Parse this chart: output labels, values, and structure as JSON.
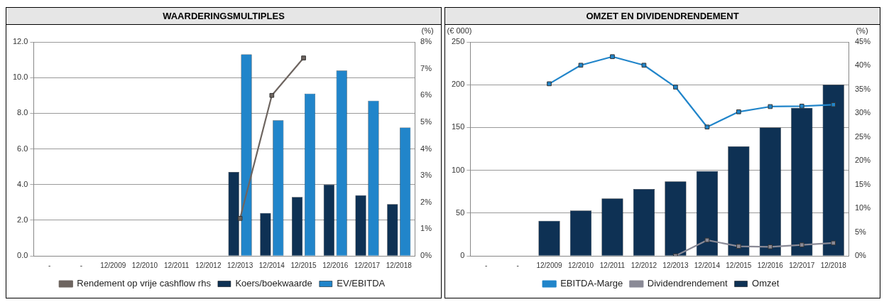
{
  "chart_data": [
    {
      "type": "bar",
      "title": "WAARDERINGSMULTIPLES",
      "y2label": "(%)",
      "categories": [
        "-",
        "-",
        "12/2009",
        "12/2010",
        "12/2011",
        "12/2012",
        "12/2013",
        "12/2014",
        "12/2015",
        "12/2016",
        "12/2017",
        "12/2018"
      ],
      "series": [
        {
          "name": "Koers/boekwaarde",
          "color": "#0e3154",
          "values": [
            null,
            null,
            null,
            null,
            null,
            null,
            4.7,
            2.4,
            3.3,
            4.0,
            3.4,
            2.9
          ]
        },
        {
          "name": "EV/EBITDA",
          "color": "#2185ca",
          "values": [
            null,
            null,
            null,
            null,
            null,
            null,
            11.3,
            7.6,
            9.1,
            10.4,
            8.7,
            7.2
          ]
        },
        {
          "name": "Rendement op vrije cashflow rhs",
          "type": "line",
          "axis": "y2",
          "color": "#6e6560",
          "values": [
            null,
            null,
            null,
            null,
            null,
            null,
            1.4,
            6.0,
            7.4,
            null,
            null,
            null
          ]
        }
      ],
      "ylim": [
        0,
        12
      ],
      "yticks": [
        {
          "value": 0,
          "label": "0.0"
        },
        {
          "value": 2,
          "label": "2.0"
        },
        {
          "value": 4,
          "label": "4.0"
        },
        {
          "value": 6,
          "label": "6.0"
        },
        {
          "value": 8,
          "label": "8.0"
        },
        {
          "value": 10,
          "label": "10.0"
        },
        {
          "value": 12,
          "label": "12.0"
        }
      ],
      "y2lim": [
        0,
        8
      ],
      "y2ticks": [
        {
          "value": 0,
          "label": "0%"
        },
        {
          "value": 1,
          "label": "1%"
        },
        {
          "value": 2,
          "label": "2%"
        },
        {
          "value": 3,
          "label": "3%"
        },
        {
          "value": 4,
          "label": "4%"
        },
        {
          "value": 5,
          "label": "5%"
        },
        {
          "value": 6,
          "label": "6%"
        },
        {
          "value": 7,
          "label": "7%"
        },
        {
          "value": 8,
          "label": "8%"
        }
      ],
      "grid": "y",
      "legend": "bottom",
      "marker": "square",
      "line_style": "solid"
    },
    {
      "type": "bar",
      "title": "OMZET EN DIVIDENDRENDEMENT",
      "ylabel": "(€ 000)",
      "y2label": "(%)",
      "categories": [
        "-",
        "-",
        "12/2009",
        "12/2010",
        "12/2011",
        "12/2012",
        "12/2013",
        "12/2014",
        "12/2015",
        "12/2016",
        "12/2017",
        "12/2018"
      ],
      "series": [
        {
          "name": "Omzet",
          "color": "#0e3154",
          "values": [
            null,
            null,
            41,
            53,
            67,
            78,
            87,
            99,
            128,
            150,
            173,
            200
          ]
        },
        {
          "name": "EBITDA-Marge",
          "type": "line",
          "axis": "y2",
          "color": "#2185ca",
          "values": [
            null,
            null,
            36.2,
            40.1,
            41.9,
            40.1,
            35.5,
            27.1,
            30.3,
            31.4,
            31.5,
            31.8
          ]
        },
        {
          "name": "Dividendrendement",
          "type": "line",
          "axis": "y2",
          "color": "#8a8a96",
          "values": [
            null,
            null,
            null,
            null,
            null,
            null,
            0,
            3.3,
            2.0,
            1.9,
            2.3,
            2.7
          ]
        }
      ],
      "ylim": [
        0,
        250
      ],
      "yticks": [
        0,
        50,
        100,
        150,
        200,
        250
      ],
      "y2lim": [
        0,
        45
      ],
      "y2ticks": [
        {
          "value": 0,
          "label": "0%"
        },
        {
          "value": 5,
          "label": "5%"
        },
        {
          "value": 10,
          "label": "10%"
        },
        {
          "value": 15,
          "label": "15%"
        },
        {
          "value": 20,
          "label": "20%"
        },
        {
          "value": 25,
          "label": "25%"
        },
        {
          "value": 30,
          "label": "30%"
        },
        {
          "value": 35,
          "label": "35%"
        },
        {
          "value": 40,
          "label": "40%"
        },
        {
          "value": 45,
          "label": "45%"
        }
      ],
      "grid": "y",
      "legend": "bottom",
      "marker": "square",
      "line_style": "solid"
    }
  ]
}
